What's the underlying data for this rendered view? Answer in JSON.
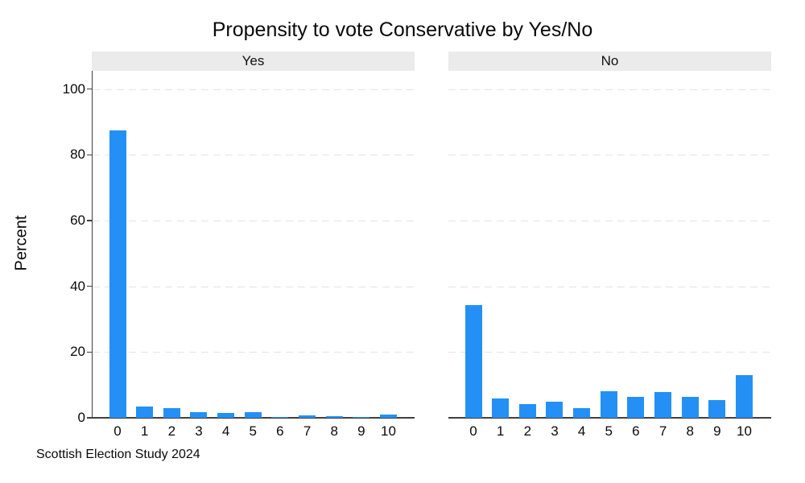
{
  "chart_data": {
    "type": "bar",
    "title": "Propensity to vote Conservative by Yes/No",
    "ylabel": "Percent",
    "xlabel": "",
    "caption": "Scottish Election Study 2024",
    "categories": [
      "0",
      "1",
      "2",
      "3",
      "4",
      "5",
      "6",
      "7",
      "8",
      "9",
      "10"
    ],
    "yticks": [
      0,
      20,
      40,
      60,
      80,
      100
    ],
    "ylim": [
      0,
      105
    ],
    "grid": "horizontal-dashed",
    "legend": "none",
    "bar_color": "#2490f5",
    "strip_bg": "#ebebeb",
    "panels": [
      {
        "label": "Yes",
        "values": [
          87.5,
          3.5,
          2.9,
          1.8,
          1.5,
          1.6,
          0.3,
          0.7,
          0.4,
          0.2,
          0.9
        ]
      },
      {
        "label": "No",
        "values": [
          34.3,
          6.0,
          4.2,
          5.0,
          2.9,
          8.2,
          6.3,
          7.8,
          6.3,
          5.3,
          13.0
        ]
      }
    ]
  }
}
